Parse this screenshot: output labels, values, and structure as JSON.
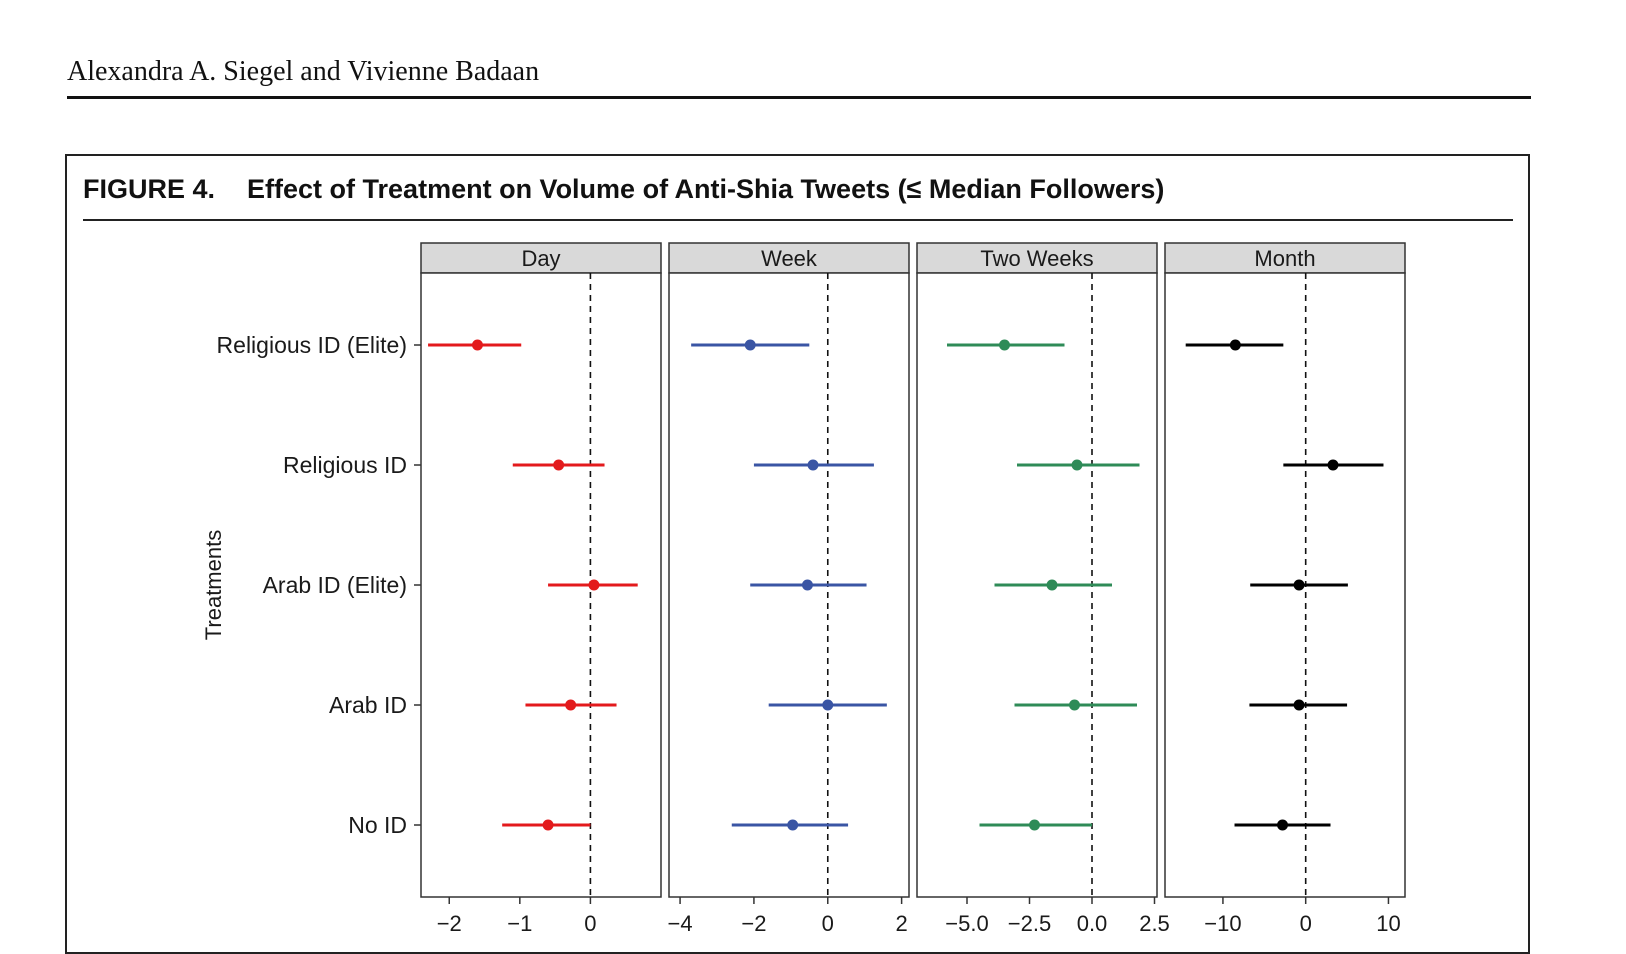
{
  "running_head": "Alexandra A. Siegel and Vivienne Badaan",
  "figure": {
    "label": "FIGURE 4.",
    "title": "Effect of Treatment on Volume of Anti-Shia Tweets (≤ Median Followers)"
  },
  "chart_data": {
    "type": "dot-and-whisker (faceted)",
    "ylabel": "Treatments",
    "categories": [
      "Religious ID (Elite)",
      "Religious ID",
      "Arab ID (Elite)",
      "Arab ID",
      "No ID"
    ],
    "reference_line": 0,
    "panels": [
      {
        "title": "Day",
        "color": "#e31a1c",
        "xlim": [
          -2.4,
          1.0
        ],
        "ticks": [
          -2,
          -1,
          0
        ],
        "tick_labels": [
          "−2",
          "−1",
          "0"
        ],
        "estimates": [
          -1.6,
          -0.45,
          0.05,
          -0.28,
          -0.6
        ],
        "ci_low": [
          -2.3,
          -1.1,
          -0.6,
          -0.92,
          -1.25
        ],
        "ci_high": [
          -0.98,
          0.2,
          0.67,
          0.37,
          0.0
        ]
      },
      {
        "title": "Week",
        "color": "#3a55a4",
        "xlim": [
          -4.3,
          2.2
        ],
        "ticks": [
          -4,
          -2,
          0,
          2
        ],
        "tick_labels": [
          "−4",
          "−2",
          "0",
          "2"
        ],
        "estimates": [
          -2.1,
          -0.4,
          -0.55,
          0.0,
          -0.95
        ],
        "ci_low": [
          -3.7,
          -2.0,
          -2.1,
          -1.6,
          -2.6
        ],
        "ci_high": [
          -0.5,
          1.25,
          1.05,
          1.6,
          0.55
        ]
      },
      {
        "title": "Two Weeks",
        "color": "#2e8b57",
        "xlim": [
          -7.0,
          2.6
        ],
        "ticks": [
          -5.0,
          -2.5,
          0.0,
          2.5
        ],
        "tick_labels": [
          "−5.0",
          "−2.5",
          "0.0",
          "2.5"
        ],
        "estimates": [
          -3.5,
          -0.6,
          -1.6,
          -0.7,
          -2.3
        ],
        "ci_low": [
          -5.8,
          -3.0,
          -3.9,
          -3.1,
          -4.5
        ],
        "ci_high": [
          -1.1,
          1.9,
          0.8,
          1.8,
          0.0
        ]
      },
      {
        "title": "Month",
        "color": "#000000",
        "xlim": [
          -17.0,
          12.0
        ],
        "ticks": [
          -10,
          0,
          10
        ],
        "tick_labels": [
          "−10",
          "0",
          "10"
        ],
        "estimates": [
          -8.5,
          3.3,
          -0.8,
          -0.8,
          -2.8
        ],
        "ci_low": [
          -14.5,
          -2.7,
          -6.7,
          -6.8,
          -8.6
        ],
        "ci_high": [
          -2.7,
          9.4,
          5.1,
          5.0,
          3.0
        ]
      }
    ]
  }
}
